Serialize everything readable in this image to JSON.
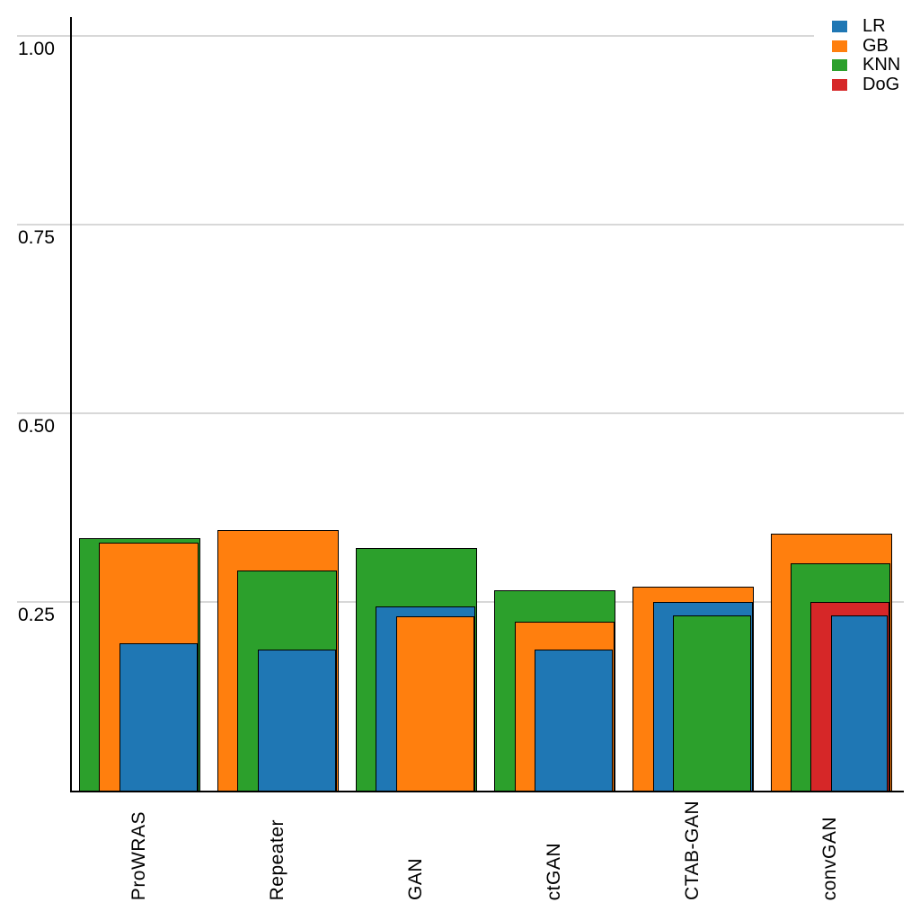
{
  "chart_data": {
    "type": "bar",
    "variant": "layered-overlapping-nested",
    "title": "",
    "xlabel": "",
    "ylabel": "",
    "categories": [
      "ProWRAS",
      "Repeater",
      "GAN",
      "ctGAN",
      "CTAB-GAN",
      "convGAN"
    ],
    "series": [
      {
        "name": "LR",
        "color": "#1f77b4",
        "values": [
          0.197,
          0.188,
          0.246,
          0.188,
          0.251,
          0.234
        ]
      },
      {
        "name": "GB",
        "color": "#ff7f0e",
        "values": [
          0.33,
          0.347,
          0.233,
          0.225,
          0.272,
          0.342
        ]
      },
      {
        "name": "KNN",
        "color": "#2ca02c",
        "values": [
          0.336,
          0.293,
          0.323,
          0.267,
          0.234,
          0.303
        ]
      },
      {
        "name": "DoG",
        "color": "#d62728",
        "values": [
          null,
          null,
          null,
          null,
          null,
          0.251
        ]
      }
    ],
    "yticks": [
      0.25,
      0.5,
      0.75,
      1.0
    ],
    "ytick_labels": [
      "0.25",
      "0.50",
      "0.75",
      "1.00"
    ],
    "ylim": [
      0,
      1.05
    ],
    "grid": "horizontal",
    "legend": {
      "position": "top-right",
      "entries": [
        "LR",
        "GB",
        "KNN",
        "DoG"
      ]
    }
  },
  "colors": {
    "background": "#ffffff",
    "gridline": "#d8d8d8",
    "axis": "#000000",
    "bar_border": "#000000",
    "text": "#000000"
  }
}
